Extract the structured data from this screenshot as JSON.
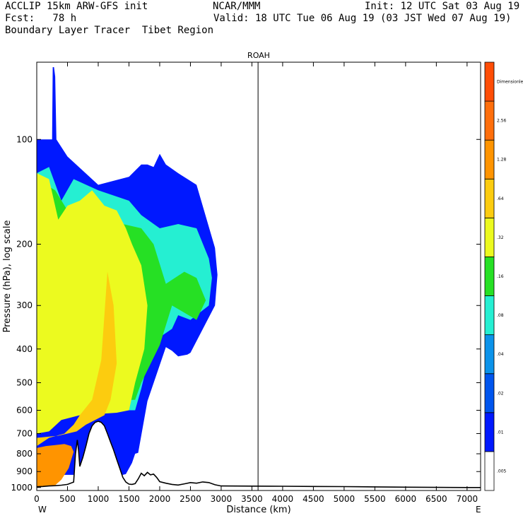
{
  "header": {
    "line1_left": "ACCLIP 15km ARW-GFS init",
    "line1_center": "NCAR/MMM",
    "line1_right": "Init: 12 UTC Sat 03 Aug 19",
    "line2_left": "Fcst:   78 h",
    "line2_right": "Valid: 18 UTC Tue 06 Aug 19 (03 JST Wed 07 Aug 19)",
    "line3_left": "Boundary Layer Tracer  Tibet Region"
  },
  "chart_data": {
    "type": "heatmap",
    "title": "ROAH",
    "xlabel": "Distance (km)",
    "ylabel": "Pressure (hPa), log scale",
    "x_ticks": [
      "0",
      "500",
      "1000",
      "1500",
      "2000",
      "2500",
      "3000",
      "3500",
      "4000",
      "4500",
      "5000",
      "5500",
      "6000",
      "6500",
      "7000"
    ],
    "x_tick_values": [
      0,
      500,
      1000,
      1500,
      2000,
      2500,
      3000,
      3500,
      4000,
      4500,
      5000,
      5500,
      6000,
      6500,
      7000
    ],
    "xlim": [
      0,
      7220
    ],
    "y_ticks": [
      "100",
      "200",
      "300",
      "400",
      "500",
      "600",
      "700",
      "800",
      "900",
      "1000"
    ],
    "y_tick_values": [
      100,
      200,
      300,
      400,
      500,
      600,
      700,
      800,
      900,
      1000
    ],
    "ylim": [
      1020,
      60
    ],
    "y_scale": "log",
    "left_end_label": "W",
    "right_end_label": "E",
    "marker_line_x": 3600,
    "colorbar": {
      "levels": [
        ".005",
        ".01",
        ".02",
        ".04",
        ".08",
        ".16",
        ".32",
        ".64",
        "1.28",
        "2.56",
        "Dimensionless"
      ],
      "colors": [
        "#ffffff",
        "#0018ff",
        "#0055ee",
        "#0b93ea",
        "#25efd2",
        "#26e024",
        "#ecfa1f",
        "#fccc0f",
        "#ff9400",
        "#ff6e0b",
        "#ff4d06"
      ]
    },
    "terrain": {
      "x": [
        0,
        100,
        200,
        300,
        400,
        500,
        600,
        630,
        660,
        680,
        700,
        750,
        800,
        850,
        900,
        950,
        1000,
        1050,
        1100,
        1150,
        1200,
        1250,
        1300,
        1350,
        1400,
        1450,
        1500,
        1550,
        1600,
        1650,
        1700,
        1750,
        1800,
        1850,
        1900,
        1950,
        2000,
        2100,
        2200,
        2300,
        2400,
        2500,
        2600,
        2700,
        2800,
        2900,
        3000,
        3500,
        4000,
        4500,
        5000,
        5500,
        6000,
        6500,
        7000,
        7220
      ],
      "pressure": [
        995,
        993,
        990,
        988,
        985,
        980,
        965,
        800,
        730,
        780,
        870,
        820,
        760,
        700,
        665,
        650,
        645,
        650,
        665,
        700,
        740,
        780,
        830,
        880,
        935,
        965,
        978,
        980,
        975,
        945,
        910,
        925,
        905,
        920,
        915,
        935,
        962,
        972,
        980,
        984,
        976,
        968,
        972,
        964,
        968,
        982,
        990,
        991,
        992,
        993,
        994,
        996,
        998,
        999,
        1000,
        1000
      ]
    },
    "tracer_regions": [
      {
        "level": ".005",
        "color": "#0018ff",
        "x": [
          0,
          250,
          260,
          280,
          300,
          320,
          500,
          1000,
          1500,
          1700,
          1800,
          1900,
          2000,
          2100,
          2300,
          2600,
          2900,
          2940,
          2900,
          2500,
          2450,
          2300,
          2200,
          2100,
          1800,
          1650,
          1600,
          1550,
          1450,
          1400,
          0
        ],
        "pressure": [
          100,
          100,
          62,
          62,
          66,
          100,
          112,
          135,
          128,
          118,
          118,
          120,
          110,
          118,
          125,
          135,
          205,
          245,
          300,
          410,
          415,
          420,
          405,
          395,
          565,
          795,
          800,
          850,
          915,
          920,
          920
        ]
      },
      {
        "level": ".08",
        "color": "#25efd2",
        "x": [
          0,
          200,
          400,
          600,
          1000,
          1500,
          1700,
          2000,
          2300,
          2600,
          2800,
          2850,
          2800,
          2500,
          2300,
          2200,
          2000,
          1800,
          1700,
          1600,
          1000,
          600,
          300,
          0
        ],
        "pressure": [
          125,
          120,
          150,
          130,
          140,
          150,
          165,
          180,
          175,
          180,
          220,
          250,
          300,
          330,
          320,
          350,
          370,
          440,
          520,
          600,
          600,
          620,
          600,
          600
        ]
      },
      {
        "level": ".16",
        "color": "#26e024",
        "x": [
          0,
          300,
          500,
          800,
          1100,
          1400,
          1700,
          1900,
          2100,
          2400,
          2600,
          2750,
          2600,
          2200,
          2000,
          1700,
          1600,
          1000,
          600,
          0
        ],
        "pressure": [
          130,
          140,
          160,
          150,
          165,
          175,
          180,
          200,
          260,
          240,
          250,
          290,
          330,
          300,
          390,
          500,
          560,
          560,
          580,
          560
        ]
      },
      {
        "level": ".32",
        "color": "#ecfa1f",
        "x": [
          0,
          200,
          350,
          500,
          700,
          900,
          1100,
          1300,
          1450,
          1550,
          1700,
          1800,
          1750,
          1600,
          1500,
          1300,
          1000,
          700,
          400,
          200,
          0
        ],
        "pressure": [
          125,
          130,
          170,
          155,
          150,
          140,
          155,
          160,
          180,
          200,
          230,
          300,
          400,
          500,
          600,
          610,
          615,
          620,
          640,
          690,
          700
        ]
      },
      {
        "level": ".64",
        "color": "#fccc0f",
        "x": [
          0,
          200,
          450,
          600,
          700,
          900,
          1050,
          1150,
          1250,
          1300,
          1200,
          1100,
          950,
          800,
          650,
          500,
          350,
          0
        ],
        "pressure": [
          760,
          720,
          700,
          660,
          620,
          560,
          430,
          240,
          300,
          440,
          560,
          620,
          640,
          660,
          690,
          700,
          710,
          720
        ]
      },
      {
        "level": "1.28",
        "color": "#ff9400",
        "x": [
          0,
          150,
          300,
          450,
          560,
          600,
          520,
          400,
          300,
          150,
          0
        ],
        "pressure": [
          770,
          760,
          755,
          750,
          760,
          790,
          880,
          950,
          985,
          990,
          993
        ]
      }
    ]
  }
}
